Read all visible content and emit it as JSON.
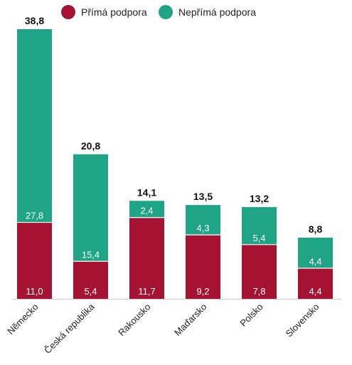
{
  "chart_data": {
    "type": "bar",
    "stacked": true,
    "categories": [
      "Německo",
      "Česká republika",
      "Rakousko",
      "Maďarsko",
      "Polsko",
      "Slovensko"
    ],
    "series": [
      {
        "name": "Přímá podpora",
        "color": "#a51232",
        "values": [
          "11,0",
          "5,4",
          "11,7",
          "9,2",
          "7,8",
          "4,4"
        ],
        "numeric": [
          11.0,
          5.4,
          11.7,
          9.2,
          7.8,
          4.4
        ]
      },
      {
        "name": "Nepřímá podpora",
        "color": "#1fa585",
        "values": [
          "27,8",
          "15,4",
          "2,4",
          "4,3",
          "5,4",
          "4,4"
        ],
        "numeric": [
          27.8,
          15.4,
          2.4,
          4.3,
          5.4,
          4.4
        ]
      }
    ],
    "totals": [
      "38,8",
      "20,8",
      "14,1",
      "13,5",
      "13,2",
      "8,8"
    ],
    "totals_numeric": [
      38.8,
      20.8,
      14.1,
      13.5,
      13.2,
      8.8
    ],
    "ylim": [
      0,
      38.8
    ],
    "legend_position": "top",
    "grid": false
  }
}
